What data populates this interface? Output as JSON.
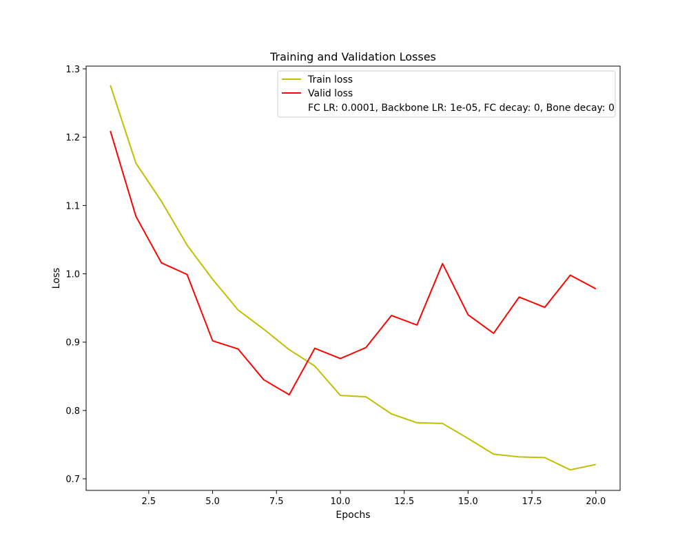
{
  "chart_data": {
    "type": "line",
    "title": "Training and Validation Losses",
    "xlabel": "Epochs",
    "ylabel": "Loss",
    "xlim": [
      0.05,
      20.95
    ],
    "ylim": [
      0.683,
      1.304
    ],
    "xticks": [
      2.5,
      5.0,
      7.5,
      10.0,
      12.5,
      15.0,
      17.5,
      20.0
    ],
    "xtick_labels": [
      "2.5",
      "5.0",
      "7.5",
      "10.0",
      "12.5",
      "15.0",
      "17.5",
      "20.0"
    ],
    "yticks": [
      0.7,
      0.8,
      0.9,
      1.0,
      1.1,
      1.2,
      1.3
    ],
    "ytick_labels": [
      "0.7",
      "0.8",
      "0.9",
      "1.0",
      "1.1",
      "1.2",
      "1.3"
    ],
    "grid": false,
    "legend_position": "top-right",
    "x": [
      1,
      2,
      3,
      4,
      5,
      6,
      7,
      8,
      9,
      10,
      11,
      12,
      13,
      14,
      15,
      16,
      17,
      18,
      19,
      20
    ],
    "series": [
      {
        "name": "Train loss",
        "color": "#bfbf00",
        "values": [
          1.276,
          1.162,
          1.106,
          1.042,
          0.992,
          0.947,
          0.919,
          0.889,
          0.865,
          0.822,
          0.82,
          0.795,
          0.782,
          0.781,
          0.759,
          0.736,
          0.732,
          0.731,
          0.713,
          0.721
        ]
      },
      {
        "name": "Valid loss",
        "color": "#ff0000",
        "values": [
          1.209,
          1.084,
          1.016,
          0.999,
          0.902,
          0.89,
          0.845,
          0.823,
          0.891,
          0.876,
          0.892,
          0.939,
          0.925,
          1.015,
          0.94,
          0.913,
          0.966,
          0.951,
          0.998,
          0.978
        ]
      }
    ],
    "legend_note": "FC LR: 0.0001, Backbone LR: 1e-05, FC decay: 0, Bone decay: 0"
  }
}
